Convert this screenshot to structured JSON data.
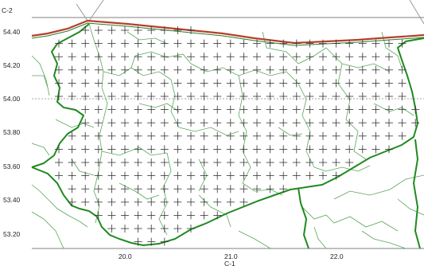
{
  "map": {
    "y_axis_title": "C-2",
    "x_axis_title": "C-1",
    "y_ticks": [
      "54.40",
      "54.20",
      "54.00",
      "53.80",
      "53.60",
      "53.40",
      "53.20"
    ],
    "x_ticks": [
      "20.0",
      "21.0",
      "22.0"
    ],
    "colors": {
      "coast": "#b5402a",
      "region_border": "#1f8a1f",
      "district_border": "#59a859",
      "grid_cross": "#333333",
      "frame": "#555555",
      "reference_line": "#888888"
    }
  }
}
